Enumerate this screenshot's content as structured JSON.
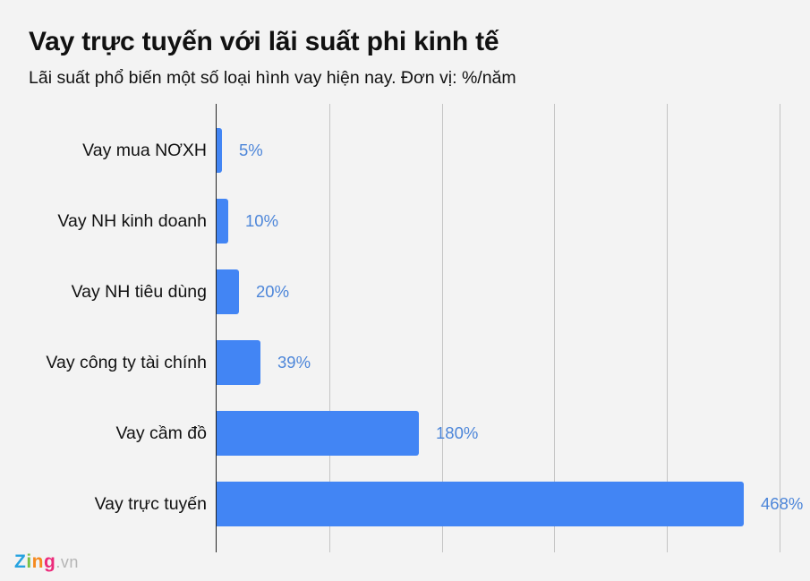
{
  "header": {
    "title": "Vay trực tuyến với lãi suất phi kinh tế",
    "subtitle": "Lãi suất phổ biến một số loại hình vay hiện nay. Đơn vị: %/năm"
  },
  "logo": {
    "z": "Z",
    "i": "i",
    "n": "n",
    "g": "g",
    "vn": ".vn"
  },
  "colors": {
    "bar": "#4285f4",
    "value_label": "#4d86d9",
    "background": "#f3f3f3",
    "gridline": "#c4c4c4"
  },
  "chart_data": {
    "type": "bar",
    "orientation": "horizontal",
    "title": "Vay trực tuyến với lãi suất phi kinh tế",
    "subtitle": "Lãi suất phổ biến một số loại hình vay hiện nay. Đơn vị: %/năm",
    "categories": [
      "Vay mua NƠXH",
      "Vay NH kinh doanh",
      "Vay NH tiêu dùng",
      "Vay công ty tài chính",
      "Vay cầm đồ",
      "Vay trực tuyến"
    ],
    "values": [
      5,
      10,
      20,
      39,
      180,
      468
    ],
    "value_labels": [
      "5%",
      "10%",
      "20%",
      "39%",
      "180%",
      "468%"
    ],
    "xlabel": "",
    "ylabel": "",
    "xlim": [
      0,
      500
    ],
    "gridlines": [
      100,
      200,
      300,
      400,
      500
    ],
    "grid": true,
    "tick_labels_shown": false,
    "legend": "none"
  }
}
